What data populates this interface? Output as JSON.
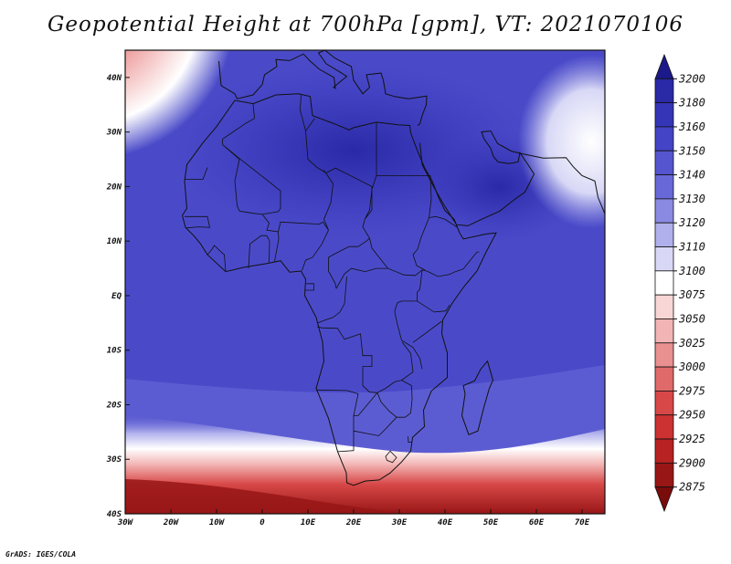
{
  "title": "Geopotential Height at 700hPa [gpm], VT: 2021070106",
  "footer": "GrADS: IGES/COLA",
  "map": {
    "lon_range": [
      -30,
      75
    ],
    "lat_range": [
      -40,
      45
    ],
    "lon_ticks": [
      "30W",
      "20W",
      "10W",
      "0",
      "10E",
      "20E",
      "30E",
      "40E",
      "50E",
      "60E",
      "70E"
    ],
    "lon_values": [
      -30,
      -20,
      -10,
      0,
      10,
      20,
      30,
      40,
      50,
      60,
      70
    ],
    "lat_ticks": [
      "40N",
      "30N",
      "20N",
      "10N",
      "EQ",
      "10S",
      "20S",
      "30S",
      "40S"
    ],
    "lat_values": [
      40,
      30,
      20,
      10,
      0,
      -10,
      -20,
      -30,
      -40
    ]
  },
  "colorbar": {
    "levels": [
      "3200",
      "3180",
      "3160",
      "3150",
      "3140",
      "3130",
      "3120",
      "3110",
      "3100",
      "3075",
      "3050",
      "3025",
      "3000",
      "2975",
      "2950",
      "2925",
      "2900",
      "2875"
    ],
    "colors": [
      "#1c1a8a",
      "#2a29a6",
      "#3535b8",
      "#4444c6",
      "#5555cf",
      "#6868d8",
      "#8a8ae2",
      "#b0b0ec",
      "#d8d8f6",
      "#ffffff",
      "#f8d6d6",
      "#f2b4b4",
      "#e99090",
      "#e06a6a",
      "#d84848",
      "#cc3232",
      "#b82222",
      "#981616",
      "#7a0c0c"
    ]
  }
}
